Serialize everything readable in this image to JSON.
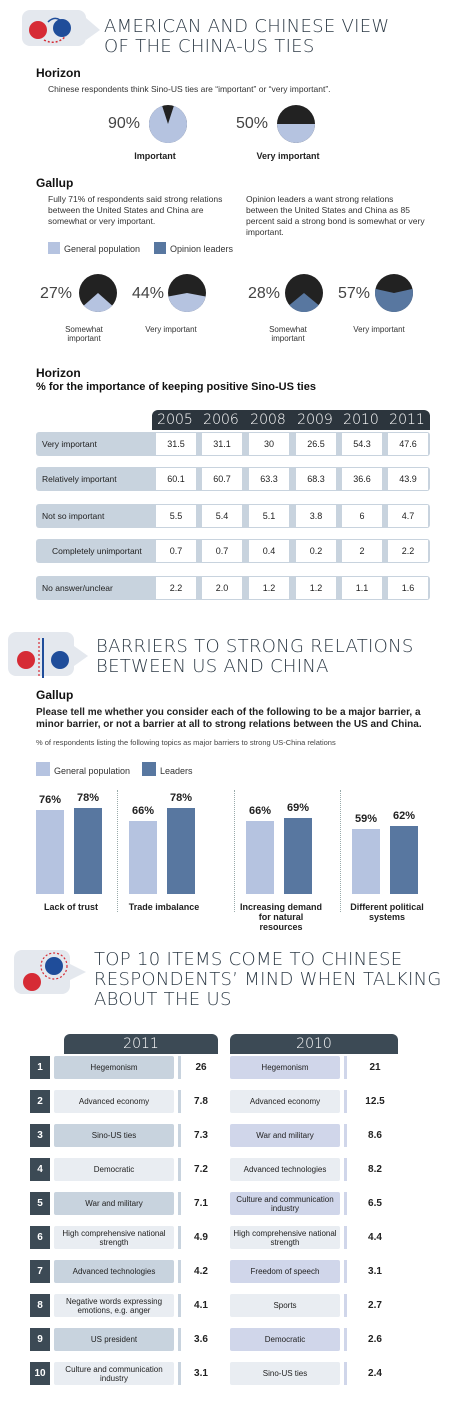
{
  "section1": {
    "title_line1": "AMERICAN AND CHINESE VIEW",
    "title_line2": "OF THE CHINA-US TIES",
    "horizon_source": "Horizon",
    "horizon_desc": "Chinese respondents think Sino-US ties are “important” or “very important”.",
    "gallup_source": "Gallup",
    "gallup_desc_left": "Fully 71% of respondents said strong relations between the United States and China are somewhat or very important.",
    "gallup_desc_right": "Opinion leaders a want strong relations between the United States and China as 85 percent said a strong bond is somewhat or very important.",
    "legend": [
      "General population",
      "Opinion leaders"
    ]
  },
  "chart_data": [
    {
      "type": "pie",
      "title": "",
      "slices": [
        {
          "label": "Important",
          "value": 90,
          "pct_label": "90%"
        },
        {
          "label": "Very important",
          "value": 50,
          "pct_label": "50%"
        }
      ]
    },
    {
      "type": "pie",
      "title": "",
      "slices": [
        {
          "label": "Somewhat important",
          "group": "General population",
          "value": 27,
          "pct_label": "27%"
        },
        {
          "label": "Very important",
          "group": "General population",
          "value": 44,
          "pct_label": "44%"
        },
        {
          "label": "Somewhat important",
          "group": "Opinion leaders",
          "value": 28,
          "pct_label": "28%"
        },
        {
          "label": "Very important",
          "group": "Opinion leaders",
          "value": 57,
          "pct_label": "57%"
        }
      ]
    },
    {
      "type": "table",
      "source": "Horizon",
      "title": "% for the importance of keeping positive Sino-US ties",
      "columns": [
        "2005",
        "2006",
        "2008",
        "2009",
        "2010",
        "2011"
      ],
      "rows": [
        {
          "label": "Very important",
          "values": [
            "31.5",
            "31.1",
            "30",
            "26.5",
            "54.3",
            "47.6"
          ]
        },
        {
          "label": "Relatively important",
          "values": [
            "60.1",
            "60.7",
            "63.3",
            "68.3",
            "36.6",
            "43.9"
          ]
        },
        {
          "label": "Not so important",
          "values": [
            "5.5",
            "5.4",
            "5.1",
            "3.8",
            "6",
            "4.7"
          ]
        },
        {
          "label": "Completely unimportant",
          "values": [
            "0.7",
            "0.7",
            "0.4",
            "0.2",
            "2",
            "2.2"
          ]
        },
        {
          "label": "No answer/unclear",
          "values": [
            "2.2",
            "2.0",
            "1.2",
            "1.2",
            "1.1",
            "1.6"
          ]
        }
      ]
    },
    {
      "type": "bar",
      "source": "Gallup",
      "title": "BARRIERS TO STRONG RELATIONS BETWEEN US AND CHINA",
      "question": "Please tell me whether you consider each of the following to be a major barrier, a minor barrier, or not a barrier at all to strong relations between the US and China.",
      "subtitle": "% of respondents listing the following topics as major barriers to strong US-China relations",
      "categories": [
        "Lack of trust",
        "Trade imbalance",
        "Increasing demand for natural resources",
        "Different political systems"
      ],
      "category_lines": [
        [
          "Lack of trust"
        ],
        [
          "Trade imbalance"
        ],
        [
          "Increasing demand",
          "for natural resources"
        ],
        [
          "Different political",
          "systems"
        ]
      ],
      "series": [
        {
          "name": "General population",
          "values": [
            76,
            66,
            66,
            59
          ],
          "labels": [
            "76%",
            "66%",
            "66%",
            "59%"
          ],
          "color": "#b5c3e0"
        },
        {
          "name": "Leaders",
          "values": [
            78,
            78,
            69,
            62
          ],
          "labels": [
            "78%",
            "78%",
            "69%",
            "62%"
          ],
          "color": "#5877a0"
        }
      ],
      "ylim": [
        0,
        100
      ]
    },
    {
      "type": "table",
      "title_line1": "TOP 10 ITEMS COME TO CHINESE",
      "title_line2": "RESPONDENTS’ MIND WHEN TALKING",
      "title_line3": "ABOUT THE US",
      "columns": [
        "2011",
        "2010"
      ],
      "ranks": [
        "1",
        "2",
        "3",
        "4",
        "5",
        "6",
        "7",
        "8",
        "9",
        "10"
      ],
      "y2011": [
        {
          "item": "Hegemonism",
          "value": "26"
        },
        {
          "item": "Advanced economy",
          "value": "7.8"
        },
        {
          "item": "Sino-US ties",
          "value": "7.3"
        },
        {
          "item": "Democratic",
          "value": "7.2"
        },
        {
          "item": "War and military",
          "value": "7.1"
        },
        {
          "item": "High comprehensive national strength",
          "value": "4.9"
        },
        {
          "item": "Advanced technologies",
          "value": "4.2"
        },
        {
          "item": "Negative words expressing emotions, e.g. anger",
          "value": "4.1"
        },
        {
          "item": "US president",
          "value": "3.6"
        },
        {
          "item": "Culture and communication industry",
          "value": "3.1"
        }
      ],
      "y2010": [
        {
          "item": "Hegemonism",
          "value": "21"
        },
        {
          "item": "Advanced economy",
          "value": "12.5"
        },
        {
          "item": "War and military",
          "value": "8.6"
        },
        {
          "item": "Advanced technologies",
          "value": "8.2"
        },
        {
          "item": "Culture and communication industry",
          "value": "6.5"
        },
        {
          "item": "High comprehensive national strength",
          "value": "4.4"
        },
        {
          "item": "Freedom of speech",
          "value": "3.1"
        },
        {
          "item": "Sports",
          "value": "2.7"
        },
        {
          "item": "Democratic",
          "value": "2.6"
        },
        {
          "item": "Sino-US ties",
          "value": "2.4"
        }
      ]
    }
  ],
  "colors": {
    "general": "#b5c3e0",
    "leaders": "#5877a0",
    "dark": "#222222",
    "header": "#3c4a55",
    "band": "#c8d3de"
  },
  "icons": [
    "china-us-flags-icon",
    "barrier-icon",
    "mind-icon"
  ]
}
